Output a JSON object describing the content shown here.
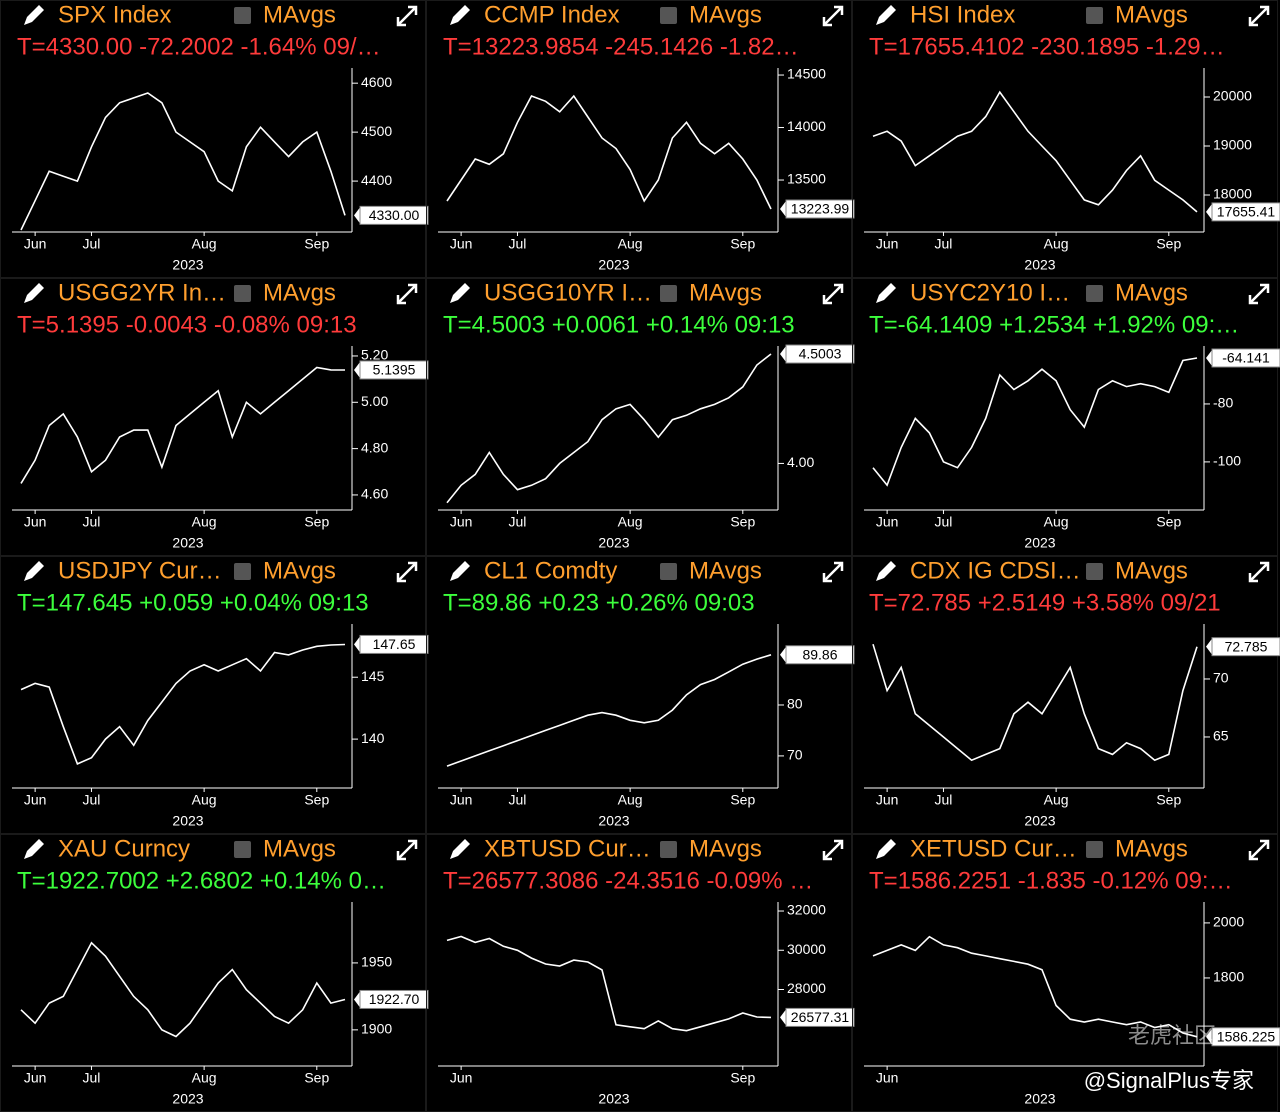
{
  "chart_data": [
    {
      "type": "line",
      "title": "SPX Index",
      "legend_label": "MAvgs",
      "quote": "T=4330.00 -72.2002 -1.64% 09/…",
      "quote_color": "#ff3b3b",
      "color": "#ffffff",
      "categories": [
        null,
        "Jun",
        null,
        null,
        null,
        "Jul",
        null,
        null,
        null,
        null,
        null,
        null,
        null,
        "Aug",
        null,
        null,
        null,
        null,
        null,
        null,
        null,
        "Sep",
        null,
        null
      ],
      "values": [
        4300,
        4360,
        4420,
        4410,
        4400,
        4470,
        4530,
        4560,
        4570,
        4580,
        4560,
        4500,
        4480,
        4460,
        4400,
        4380,
        4470,
        4510,
        4480,
        4450,
        4480,
        4500,
        4420,
        4330
      ],
      "ylim": [
        4296,
        4631
      ],
      "yticks": [
        4400,
        4500,
        4600
      ],
      "last_value": {
        "value": 4330,
        "label": "4330.00"
      },
      "year_label": "2023"
    },
    {
      "type": "line",
      "title": "CCMP Index",
      "legend_label": "MAvgs",
      "quote": "T=13223.9854 -245.1426 -1.82…",
      "quote_color": "#ff3b3b",
      "color": "#ffffff",
      "categories": [
        null,
        "Jun",
        null,
        null,
        null,
        "Jul",
        null,
        null,
        null,
        null,
        null,
        null,
        null,
        "Aug",
        null,
        null,
        null,
        null,
        null,
        null,
        null,
        "Sep",
        null,
        null
      ],
      "values": [
        13300,
        13500,
        13700,
        13650,
        13750,
        14050,
        14300,
        14250,
        14150,
        14300,
        14100,
        13900,
        13800,
        13600,
        13300,
        13500,
        13900,
        14050,
        13850,
        13750,
        13850,
        13700,
        13500,
        13224
      ],
      "ylim": [
        13005,
        14567
      ],
      "yticks": [
        13500,
        14000,
        14500
      ],
      "last_value": 13223.99,
      "year_label": "2023"
    },
    {
      "type": "line",
      "title": "HSI Index",
      "legend_label": "MAvgs",
      "quote": "T=17655.4102 -230.1895 -1.29…",
      "quote_color": "#ff3b3b",
      "color": "#ffffff",
      "categories": [
        null,
        "Jun",
        null,
        null,
        null,
        "Jul",
        null,
        null,
        null,
        null,
        null,
        null,
        null,
        "Aug",
        null,
        null,
        null,
        null,
        null,
        null,
        null,
        "Sep",
        null,
        null
      ],
      "values": [
        19200,
        19300,
        19100,
        18600,
        18800,
        19000,
        19200,
        19300,
        19600,
        20100,
        19700,
        19300,
        19000,
        18700,
        18300,
        17900,
        17800,
        18100,
        18500,
        18800,
        18300,
        18100,
        17900,
        17655
      ],
      "ylim": [
        17245,
        20592
      ],
      "yticks": [
        18000,
        19000,
        20000
      ],
      "last_value": 17655.41,
      "year_label": "2023"
    },
    {
      "type": "line",
      "title": "USGG2YR In…",
      "legend_label": "MAvgs",
      "quote": "T=5.1395 -0.0043 -0.08% 09:13",
      "quote_color": "#ff3b3b",
      "color": "#ffffff",
      "categories": [
        null,
        "Jun",
        null,
        null,
        null,
        "Jul",
        null,
        null,
        null,
        null,
        null,
        null,
        null,
        "Aug",
        null,
        null,
        null,
        null,
        null,
        null,
        null,
        "Sep",
        null,
        null
      ],
      "values": [
        4.65,
        4.75,
        4.9,
        4.95,
        4.85,
        4.7,
        4.75,
        4.85,
        4.88,
        4.88,
        4.72,
        4.9,
        4.95,
        5.0,
        5.05,
        4.85,
        5.0,
        4.95,
        5.0,
        5.05,
        5.1,
        5.15,
        5.14,
        5.1395
      ],
      "ylim": [
        4.535,
        5.243
      ],
      "yticks": [
        {
          "value": 4.6,
          "label": "4.60"
        },
        {
          "value": 4.8,
          "label": "4.80"
        },
        {
          "value": 5,
          "label": "5.00"
        },
        {
          "value": 5.2,
          "label": "5.20"
        }
      ],
      "last_value": 5.1395,
      "year_label": "2023"
    },
    {
      "type": "line",
      "title": "USGG10YR I…",
      "legend_label": "MAvgs",
      "quote": "T=4.5003 +0.0061 +0.14% 09:13",
      "quote_color": "#3cff3c",
      "color": "#ffffff",
      "categories": [
        null,
        "Jun",
        null,
        null,
        null,
        "Jul",
        null,
        null,
        null,
        null,
        null,
        null,
        null,
        "Aug",
        null,
        null,
        null,
        null,
        null,
        null,
        null,
        "Sep",
        null,
        null
      ],
      "values": [
        3.82,
        3.9,
        3.95,
        4.05,
        3.95,
        3.88,
        3.9,
        3.93,
        4.0,
        4.05,
        4.1,
        4.2,
        4.25,
        4.27,
        4.2,
        4.12,
        4.2,
        4.22,
        4.25,
        4.27,
        4.3,
        4.35,
        4.45,
        4.5003
      ],
      "ylim": [
        3.787,
        4.537
      ],
      "yticks": [
        {
          "value": 4,
          "label": "4.00"
        }
      ],
      "last_value": 4.5003,
      "year_label": "2023"
    },
    {
      "type": "line",
      "title": "USYC2Y10 I…",
      "legend_label": "MAvgs",
      "quote": "T=-64.1409 +1.2534 +1.92% 09:…",
      "quote_color": "#3cff3c",
      "color": "#ffffff",
      "categories": [
        null,
        "Jun",
        null,
        null,
        null,
        "Jul",
        null,
        null,
        null,
        null,
        null,
        null,
        null,
        "Aug",
        null,
        null,
        null,
        null,
        null,
        null,
        null,
        "Sep",
        null,
        null
      ],
      "values": [
        -102,
        -108,
        -95,
        -85,
        -90,
        -100,
        -102,
        -95,
        -85,
        -70,
        -75,
        -72,
        -68,
        -72,
        -82,
        -88,
        -75,
        -72,
        -74,
        -73,
        -74,
        -76,
        -65,
        -64.1409
      ],
      "ylim": [
        -116.6,
        -60
      ],
      "yticks": [
        -100,
        -80
      ],
      "last_value": -64.141,
      "year_label": "2023"
    },
    {
      "type": "line",
      "title": "USDJPY Cur…",
      "legend_label": "MAvgs",
      "quote": "T=147.645 +0.059 +0.04% 09:13",
      "quote_color": "#3cff3c",
      "color": "#ffffff",
      "categories": [
        null,
        "Jun",
        null,
        null,
        null,
        "Jul",
        null,
        null,
        null,
        null,
        null,
        null,
        null,
        "Aug",
        null,
        null,
        null,
        null,
        null,
        null,
        null,
        "Sep",
        null,
        null
      ],
      "values": [
        144,
        144.5,
        144.2,
        141,
        138,
        138.5,
        140,
        141,
        139.5,
        141.5,
        143,
        144.5,
        145.5,
        146,
        145.5,
        146,
        146.5,
        145.5,
        147,
        146.8,
        147.2,
        147.5,
        147.6,
        147.645
      ],
      "ylim": [
        136.05,
        149.3
      ],
      "yticks": [
        140,
        145
      ],
      "last_value": 147.65,
      "year_label": "2023"
    },
    {
      "type": "line",
      "title": "CL1 Comdty",
      "legend_label": "MAvgs",
      "quote": "T=89.86 +0.23 +0.26% 09:03",
      "quote_color": "#3cff3c",
      "color": "#ffffff",
      "categories": [
        null,
        "Jun",
        null,
        null,
        null,
        "Jul",
        null,
        null,
        null,
        null,
        null,
        null,
        null,
        "Aug",
        null,
        null,
        null,
        null,
        null,
        null,
        null,
        "Sep",
        null,
        null
      ],
      "values": [
        68,
        69,
        70,
        71,
        72,
        73,
        74,
        75,
        76,
        77,
        78,
        78.5,
        78,
        77,
        76.5,
        77,
        79,
        82,
        84,
        85,
        86.5,
        88,
        89,
        89.86
      ],
      "ylim": [
        63.7,
        95.9
      ],
      "yticks": [
        70,
        80
      ],
      "last_value": 89.86,
      "year_label": "2023"
    },
    {
      "type": "line",
      "title": "CDX IG CDSI…",
      "legend_label": "MAvgs",
      "quote": "T=72.785 +2.5149 +3.58% 09/21",
      "quote_color": "#ff3b3b",
      "color": "#ffffff",
      "categories": [
        null,
        "Jun",
        null,
        null,
        null,
        "Jul",
        null,
        null,
        null,
        null,
        null,
        null,
        null,
        "Aug",
        null,
        null,
        null,
        null,
        null,
        null,
        null,
        "Sep",
        null,
        null
      ],
      "values": [
        73,
        69,
        71,
        67,
        66,
        65,
        64,
        63,
        63.5,
        64,
        67,
        68,
        67,
        69,
        71,
        67,
        64,
        63.5,
        64.5,
        64,
        63,
        63.5,
        69,
        72.785
      ],
      "ylim": [
        60.6,
        74.74
      ],
      "yticks": [
        65,
        70
      ],
      "last_value": 72.785,
      "year_label": "2023"
    },
    {
      "type": "line",
      "title": "XAU Curncy",
      "legend_label": "MAvgs",
      "quote": "T=1922.7002 +2.6802 +0.14% 0…",
      "quote_color": "#3cff3c",
      "color": "#ffffff",
      "categories": [
        null,
        "Jun",
        null,
        null,
        null,
        "Jul",
        null,
        null,
        null,
        null,
        null,
        null,
        null,
        "Aug",
        null,
        null,
        null,
        null,
        null,
        null,
        null,
        "Sep",
        null,
        null
      ],
      "values": [
        1915,
        1905,
        1920,
        1925,
        1945,
        1965,
        1955,
        1940,
        1925,
        1915,
        1900,
        1895,
        1905,
        1920,
        1935,
        1945,
        1930,
        1920,
        1910,
        1905,
        1915,
        1935,
        1920,
        1922.7
      ],
      "ylim": [
        1873,
        1995.5
      ],
      "yticks": [
        1900,
        1950
      ],
      "last_value": {
        "value": 1922.7,
        "label": "1922.70"
      },
      "year_label": "2023"
    },
    {
      "type": "line",
      "title": "XBTUSD Cur…",
      "legend_label": "MAvgs",
      "quote": "T=26577.3086 -24.3516 -0.09% …",
      "quote_color": "#ff3b3b",
      "color": "#ffffff",
      "categories": [
        null,
        "Jun",
        null,
        null,
        null,
        null,
        null,
        null,
        null,
        null,
        null,
        null,
        null,
        null,
        null,
        null,
        null,
        null,
        null,
        null,
        null,
        "Sep",
        null,
        null
      ],
      "values": [
        30500,
        30700,
        30400,
        30600,
        30200,
        30000,
        29600,
        29300,
        29200,
        29500,
        29400,
        29000,
        26200,
        26100,
        26000,
        26400,
        26000,
        25900,
        26100,
        26300,
        26500,
        26800,
        26600,
        26577.31
      ],
      "ylim": [
        24100,
        32460
      ],
      "yticks": [
        28000,
        30000,
        32000
      ],
      "last_value": 26577.31,
      "year_label": "2023"
    },
    {
      "type": "line",
      "title": "XETUSD Cur…",
      "legend_label": "MAvgs",
      "quote": "T=1586.2251 -1.835 -0.12% 09:…",
      "quote_color": "#ff3b3b",
      "color": "#ffffff",
      "categories": [
        null,
        "Jun",
        null,
        null,
        null,
        null,
        null,
        null,
        null,
        null,
        null,
        null,
        null,
        null,
        null,
        null,
        null,
        null,
        null,
        null,
        null,
        null,
        null,
        null
      ],
      "values": [
        1880,
        1900,
        1920,
        1900,
        1950,
        1920,
        1910,
        1890,
        1880,
        1870,
        1860,
        1850,
        1830,
        1700,
        1650,
        1640,
        1650,
        1640,
        1630,
        1640,
        1620,
        1630,
        1600,
        1586.23
      ],
      "ylim": [
        1480,
        2076
      ],
      "yticks": [
        1800,
        2000
      ],
      "last_value": 1586.225,
      "year_label": "2023"
    }
  ],
  "watermark": "老虎社区",
  "credit": "@SignalPlus专家"
}
